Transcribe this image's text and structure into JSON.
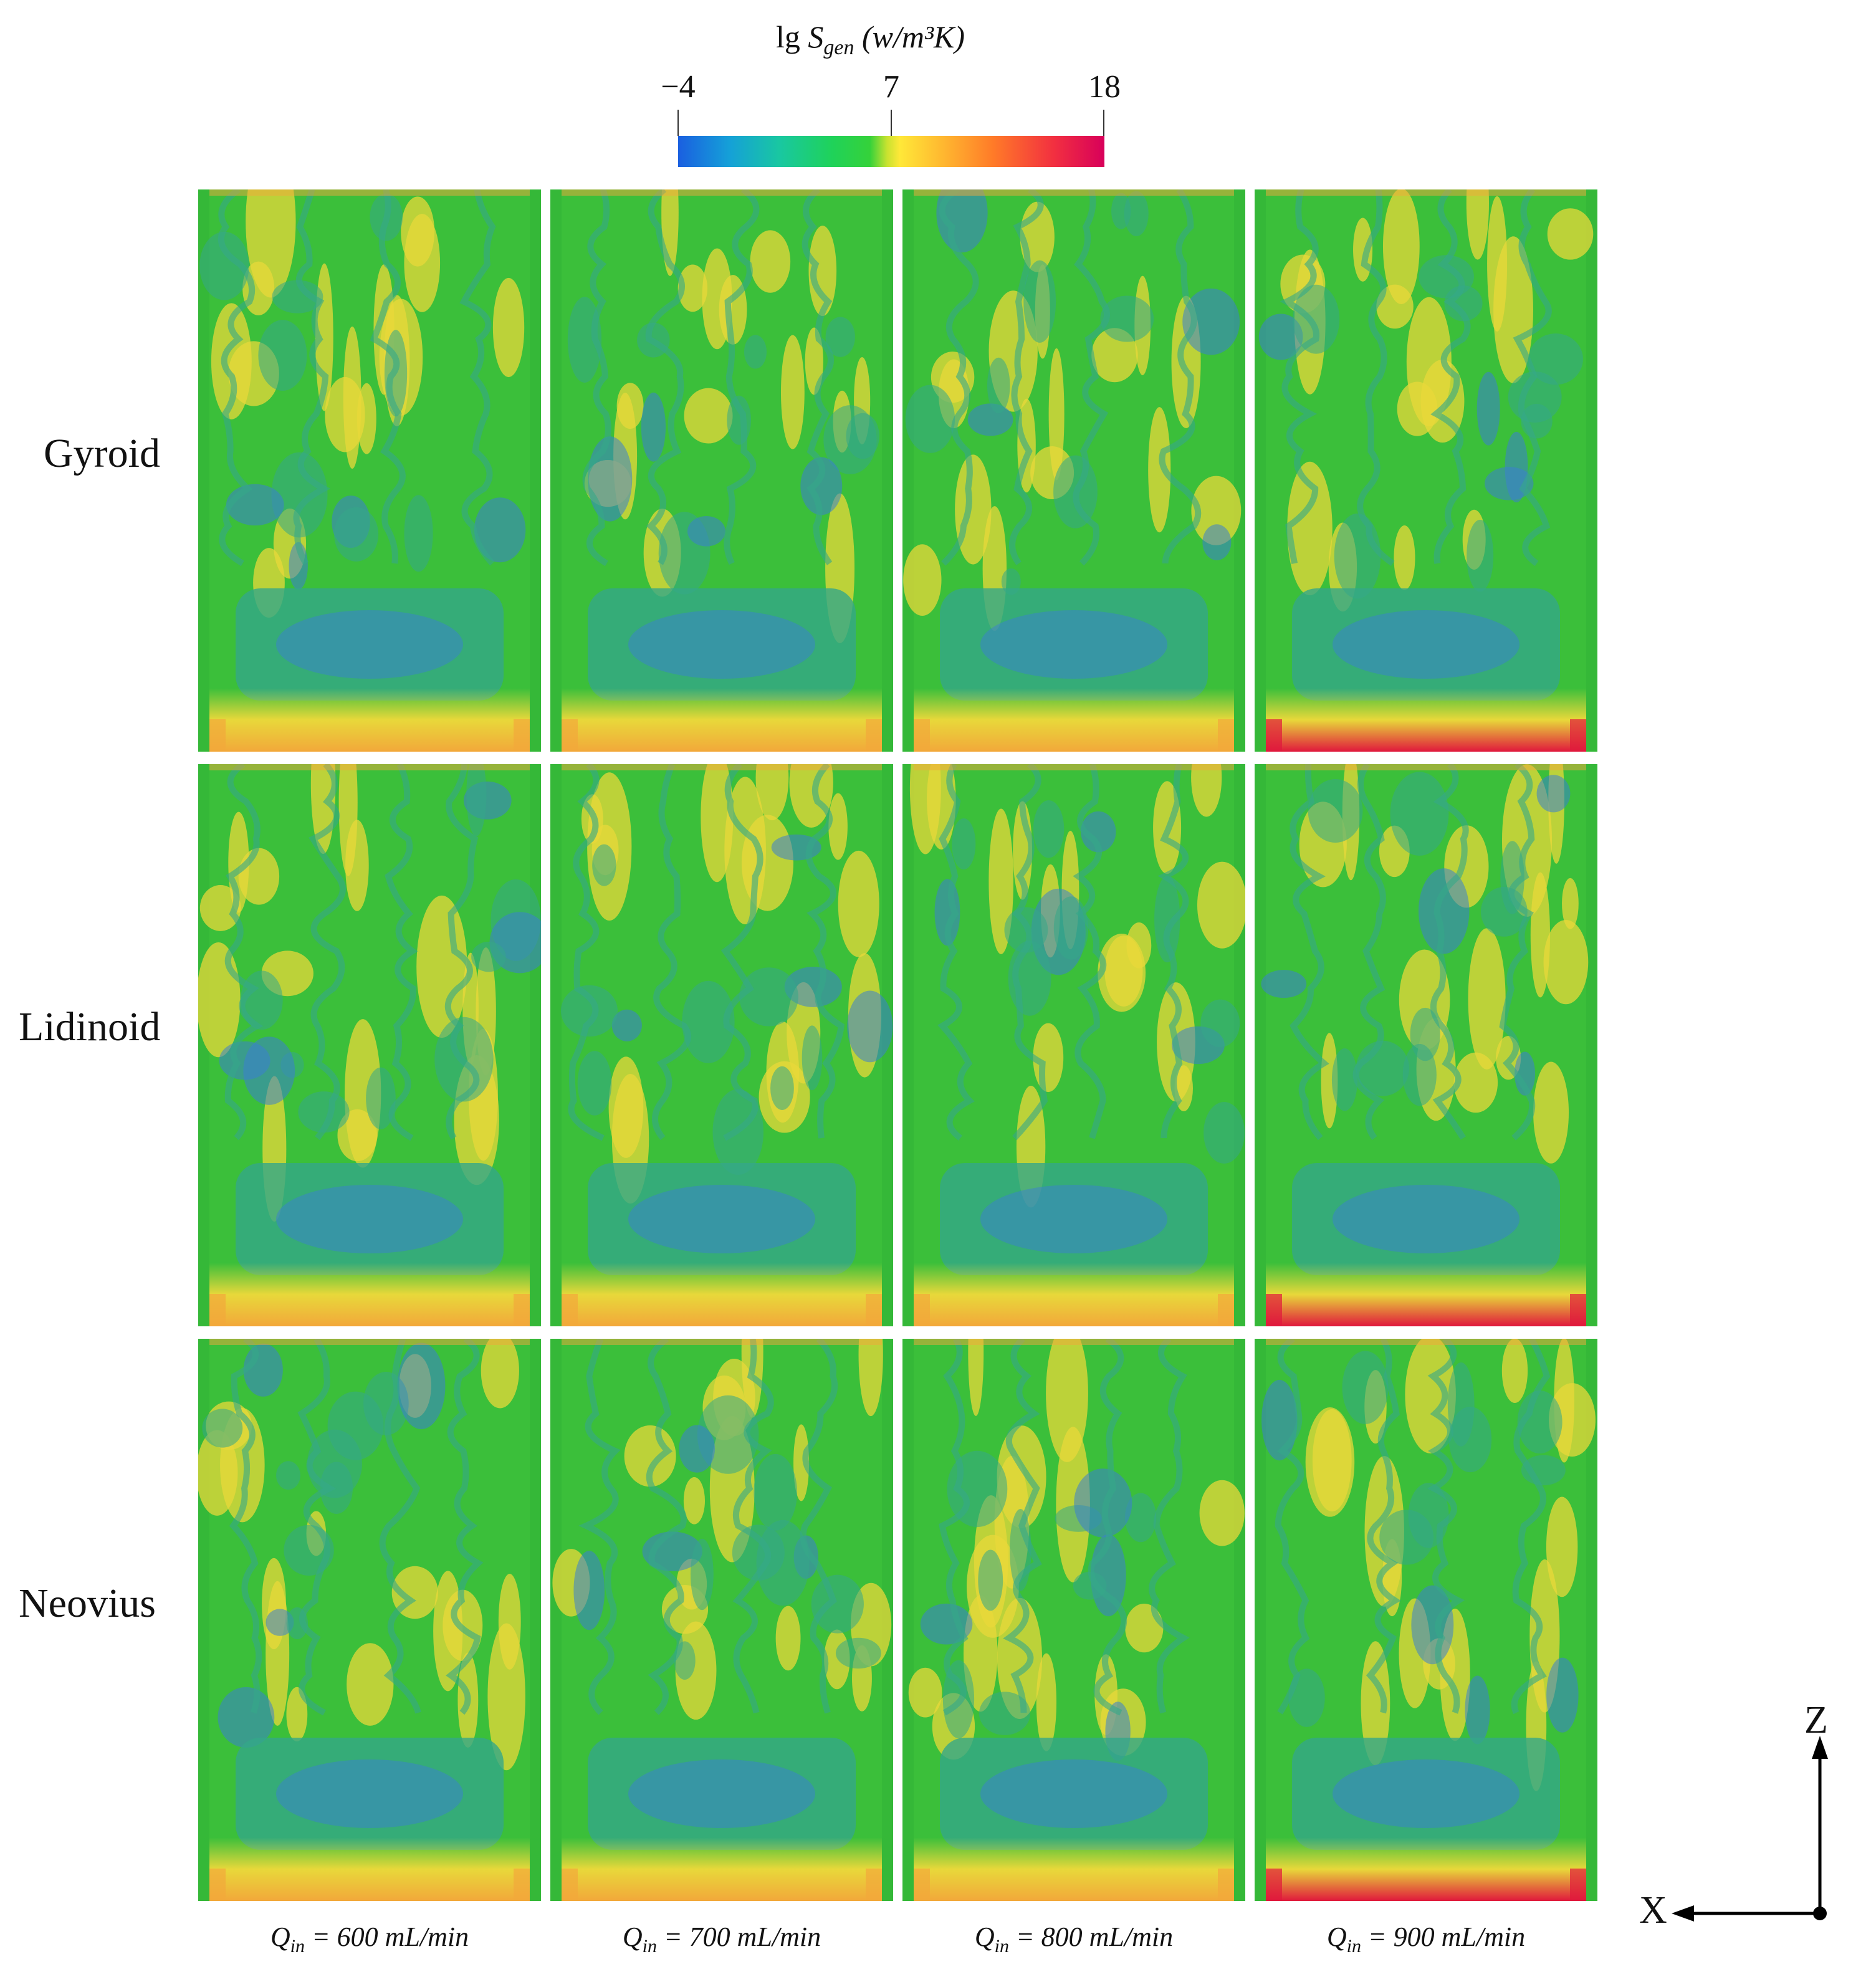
{
  "colorbar": {
    "title_prefix": "lg ",
    "title_symbol": "S",
    "title_sub": "gen",
    "title_units": " (w/m³K)",
    "tick_labels": [
      "−4",
      "7",
      "18"
    ],
    "min": -4,
    "mid": 7,
    "max": 18
  },
  "rows": [
    "Gyroid",
    "Lidinoid",
    "Neovius"
  ],
  "columns": [
    {
      "q": "Q",
      "sub": "in",
      "text": " = 600 mL/min"
    },
    {
      "q": "Q",
      "sub": "in",
      "text": " = 700 mL/min"
    },
    {
      "q": "Q",
      "sub": "in",
      "text": " = 800 mL/min"
    },
    {
      "q": "Q",
      "sub": "in",
      "text": " = 900 mL/min"
    }
  ],
  "axes": {
    "vertical": "Z",
    "horizontal": "X"
  },
  "palette": {
    "blue": "#3a7fd0",
    "teal": "#35a888",
    "green": "#3bbf3a",
    "yellow": "#e8d83a",
    "orange": "#f2a83a",
    "red": "#e0183c"
  }
}
